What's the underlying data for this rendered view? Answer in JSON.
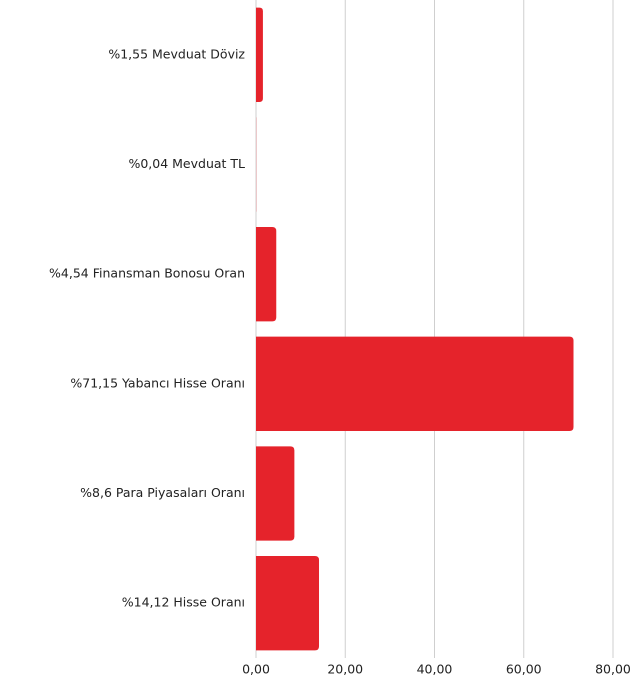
{
  "chart_data": {
    "type": "bar",
    "orientation": "horizontal",
    "categories": [
      "%1,55 Mevduat Döviz",
      "%0,04 Mevduat TL",
      "%4,54 Finansman Bonosu Oran",
      "%71,15 Yabancı Hisse Oranı",
      "%8,6 Para Piyasaları Oranı",
      "%14,12 Hisse Oranı"
    ],
    "values": [
      1.55,
      0.04,
      4.54,
      71.15,
      8.6,
      14.12
    ],
    "color": "#e5232b",
    "xlim": [
      0,
      80
    ],
    "xticks": [
      {
        "value": 0,
        "label": "0,00"
      },
      {
        "value": 20,
        "label": "20,00"
      },
      {
        "value": 40,
        "label": "40,00"
      },
      {
        "value": 60,
        "label": "60,00"
      },
      {
        "value": 80,
        "label": "80,00"
      }
    ],
    "grid": true
  }
}
